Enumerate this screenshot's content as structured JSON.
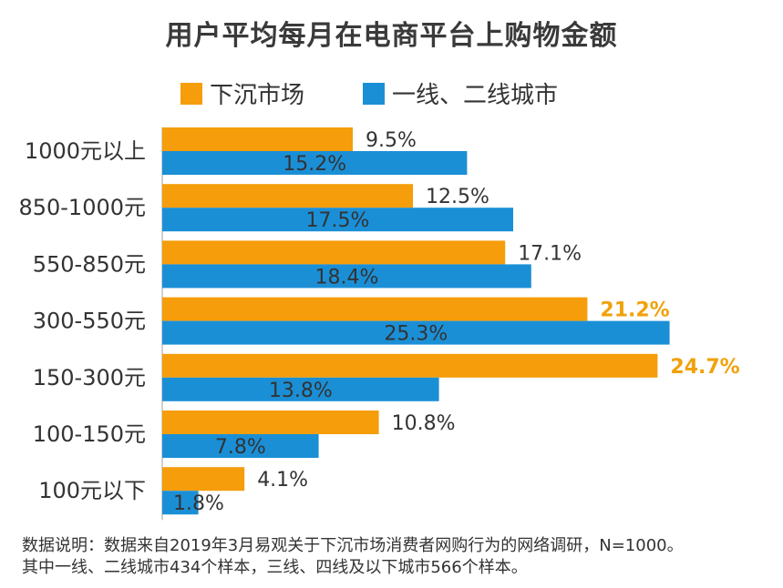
{
  "title": "用户平均每月在电商平台上购物金额",
  "colors": {
    "series1": "#f59d0a",
    "series2": "#1b8fd6",
    "highlight": "#f0a20c",
    "label": "#333333"
  },
  "notes": [
    "数据说明：数据来自2019年3月易观关于下沉市场消费者网购行为的网络调研，N=1000。",
    "其中一线、二线城市434个样本，三线、四线及以下城市566个样本。"
  ],
  "chart_data": {
    "type": "bar",
    "orientation": "horizontal",
    "title": "用户平均每月在电商平台上购物金额",
    "categories": [
      "1000元以上",
      "850-1000元",
      "550-850元",
      "300-550元",
      "150-300元",
      "100-150元",
      "100元以下"
    ],
    "series": [
      {
        "name": "下沉市场",
        "values": [
          9.5,
          12.5,
          17.1,
          21.2,
          24.7,
          10.8,
          4.1
        ],
        "labels": [
          "9.5%",
          "12.5%",
          "17.1%",
          "21.2%",
          "24.7%",
          "10.8%",
          "4.1%"
        ]
      },
      {
        "name": "一线、二线城市",
        "values": [
          15.2,
          17.5,
          18.4,
          25.3,
          13.8,
          7.8,
          1.8
        ],
        "labels": [
          "15.2%",
          "17.5%",
          "18.4%",
          "25.3%",
          "13.8%",
          "7.8%",
          "1.8%"
        ]
      }
    ],
    "highlighted": [
      3,
      4
    ],
    "legend": "top",
    "grid": false
  }
}
